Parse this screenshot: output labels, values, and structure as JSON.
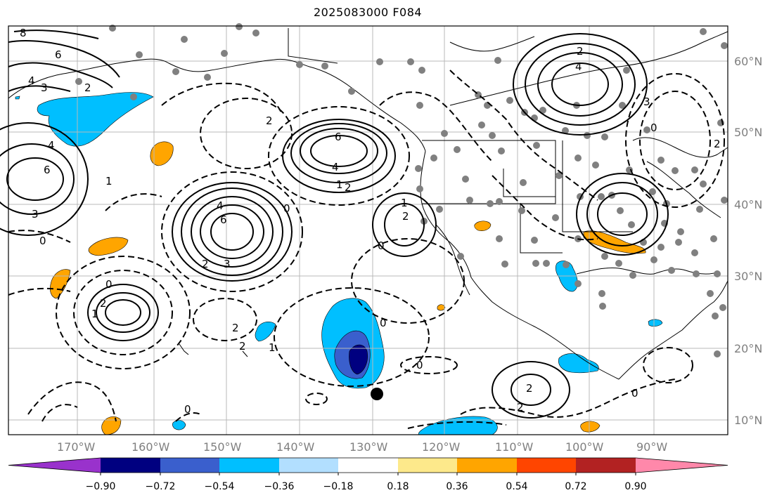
{
  "title": "2025083000 F084",
  "map": {
    "lon_labels": [
      "170°W",
      "160°W",
      "150°W",
      "140°W",
      "130°W",
      "120°W",
      "110°W",
      "100°W",
      "90°W"
    ],
    "lat_labels": [
      "60°N",
      "50°N",
      "40°N",
      "30°N",
      "20°N",
      "10°N"
    ],
    "contour_labels": [
      "8",
      "6",
      "4",
      "3",
      "2",
      "4",
      "6",
      "1",
      "3",
      "0",
      "6",
      "4",
      "1",
      "2",
      "4",
      "6",
      "2",
      "3",
      "0",
      "1",
      "2",
      "0",
      "2",
      "1",
      "2",
      "0",
      "0",
      "2",
      "2",
      "3",
      "4",
      "2",
      "0",
      "2",
      "1",
      "0",
      "0",
      "2",
      "0",
      "2"
    ]
  },
  "colorbar": {
    "colors": [
      "#9932cc",
      "#000080",
      "#3a5fcd",
      "#00bfff",
      "#b2dfff",
      "#ffffff",
      "#fde98b",
      "#ffa500",
      "#ff4500",
      "#b22222",
      "#ff88aa"
    ],
    "tick_labels": [
      "−0.90",
      "−0.72",
      "−0.54",
      "−0.36",
      "−0.18",
      "0.18",
      "0.36",
      "0.54",
      "0.72",
      "0.90"
    ]
  }
}
